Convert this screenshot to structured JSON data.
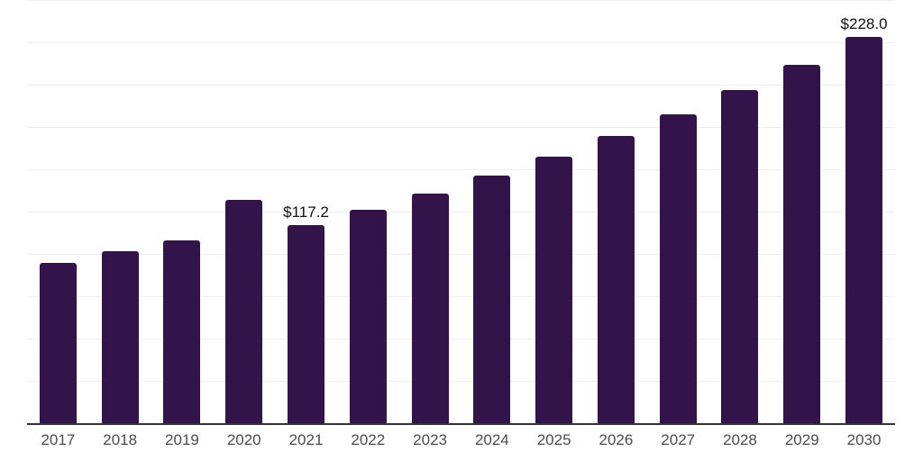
{
  "chart_data": {
    "type": "bar",
    "title": "",
    "xlabel": "",
    "ylabel": "",
    "categories": [
      "2017",
      "2018",
      "2019",
      "2020",
      "2021",
      "2022",
      "2023",
      "2024",
      "2025",
      "2026",
      "2027",
      "2028",
      "2029",
      "2030"
    ],
    "values": [
      94.9,
      101.4,
      108.1,
      131.7,
      117.2,
      126.2,
      135.9,
      146.3,
      157.5,
      169.6,
      182.6,
      196.6,
      211.7,
      228.0
    ],
    "data_labels": {
      "2021": "$117.2",
      "2030": "$228.0"
    },
    "ylim": [
      0,
      250
    ],
    "gridline_interval": 25,
    "grid": "horizontal",
    "legend": "none",
    "colors": {
      "bar": "#33144a",
      "gridline": "#efeff1",
      "axis_line": "#333333",
      "tick_label": "#4c4c4c",
      "data_label": "#111111",
      "background": "#ffffff"
    }
  }
}
